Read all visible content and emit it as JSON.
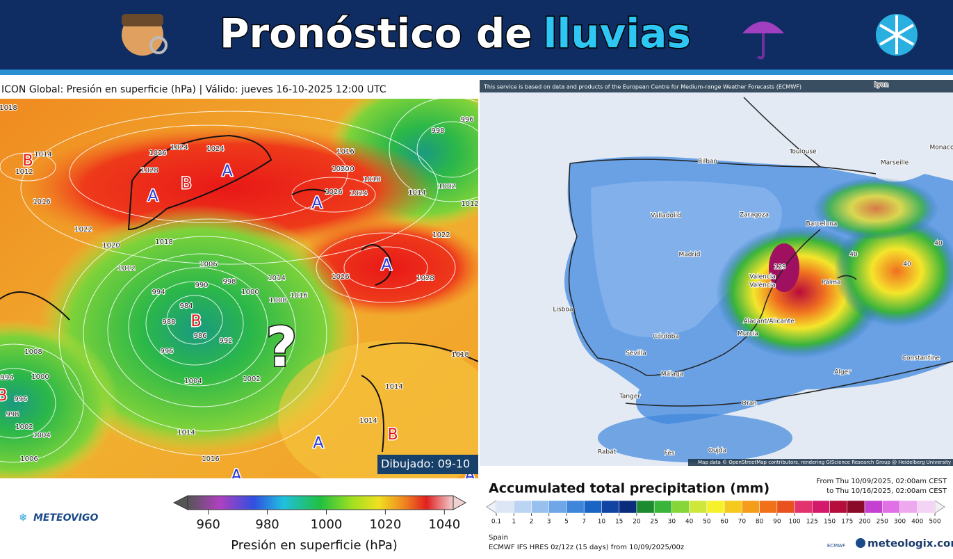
{
  "header": {
    "title_main": "Pronóstico de",
    "title_highlight": "lluvias"
  },
  "left_panel": {
    "title": "ICON Global: Presión en superficie (hPa) | Válido: jueves 16-10-2025 12:00 UTC",
    "drawn": "Dibujado: 09-10",
    "question": "?",
    "centers": [
      "B",
      "A",
      "B",
      "A",
      "A",
      "A",
      "B",
      "A",
      "B",
      "A",
      "B",
      "A"
    ],
    "isobars": [
      "1018",
      "1014",
      "1012",
      "1016",
      "1026",
      "1024",
      "1028",
      "1024",
      "1016",
      "1020",
      "1018",
      "1026",
      "1024",
      "1014",
      "1002",
      "998",
      "996",
      "1022",
      "1020",
      "1018",
      "1012",
      "1006",
      "990",
      "998",
      "994",
      "1000",
      "1014",
      "1016",
      "1008",
      "984",
      "988",
      "986",
      "992",
      "996",
      "1002",
      "1004",
      "1008",
      "1000",
      "994",
      "996",
      "998",
      "1002",
      "1004",
      "1006",
      "1014",
      "1016",
      "1026",
      "1028",
      "1014",
      "1014",
      "1018",
      "1012",
      "1020",
      "1022"
    ],
    "colorbar": {
      "label": "Presión en superficie (hPa)",
      "lim": [
        953,
        1043
      ],
      "ticks": [
        960,
        980,
        1000,
        1020,
        1040
      ]
    },
    "brand": "METEOVIGO"
  },
  "right_panel": {
    "attribution": "This service is based on data and products of the European Centre for Medium-range Weather Forecasts (ECMWF)",
    "map_credit": "Map data © OpenStreetMap contributors, rendering GIScience Research Group @ Heidelberg University",
    "cities": [
      "Lyon",
      "Toulouse",
      "Bilbao",
      "Monaco",
      "Marseille",
      "Zaragoza",
      "Barcelona",
      "Valladolid",
      "Madrid",
      "Lisboa",
      "Valencia",
      "València",
      "Palma",
      "Córdoba",
      "Sevilla",
      "Alacant/Alicante",
      "Murcia",
      "Málaga",
      "Alger",
      "Constantine",
      "Tanger",
      "Oran",
      "Rabat",
      "Fès",
      "Oujda"
    ],
    "map_values": [
      "129",
      "40",
      "40",
      "40"
    ],
    "legend": {
      "title": "Accumulated total precipitation (mm)",
      "from": "From Thu 10/09/2025, 02:00am CEST",
      "to": "to Thu 10/16/2025, 02:00am CEST",
      "ticks": [
        0.1,
        1,
        2,
        3,
        5,
        7,
        10,
        15,
        20,
        25,
        30,
        40,
        50,
        60,
        70,
        80,
        90,
        100,
        125,
        150,
        175,
        200,
        250,
        300,
        400,
        500
      ],
      "colors": [
        "#dce6f5",
        "#bcd4f3",
        "#98c0ee",
        "#6fa6e8",
        "#3f86db",
        "#1a64c4",
        "#0f44a2",
        "#0a2c7c",
        "#1c8a2e",
        "#3ab43b",
        "#86d63a",
        "#cde83a",
        "#f5f22b",
        "#f6c91e",
        "#f59c1a",
        "#f0711a",
        "#e8521f",
        "#e3336f",
        "#d4186a",
        "#b50d3c",
        "#8a0a2a",
        "#c440d0",
        "#e070e5",
        "#eea8ee",
        "#f4d4f4"
      ]
    },
    "region": "Spain",
    "model": "ECMWF IFS HRES 0z/12z (15 days) from 10/09/2025/00z",
    "ecmwf": "ECMWF",
    "brand": "meteologix.com"
  }
}
